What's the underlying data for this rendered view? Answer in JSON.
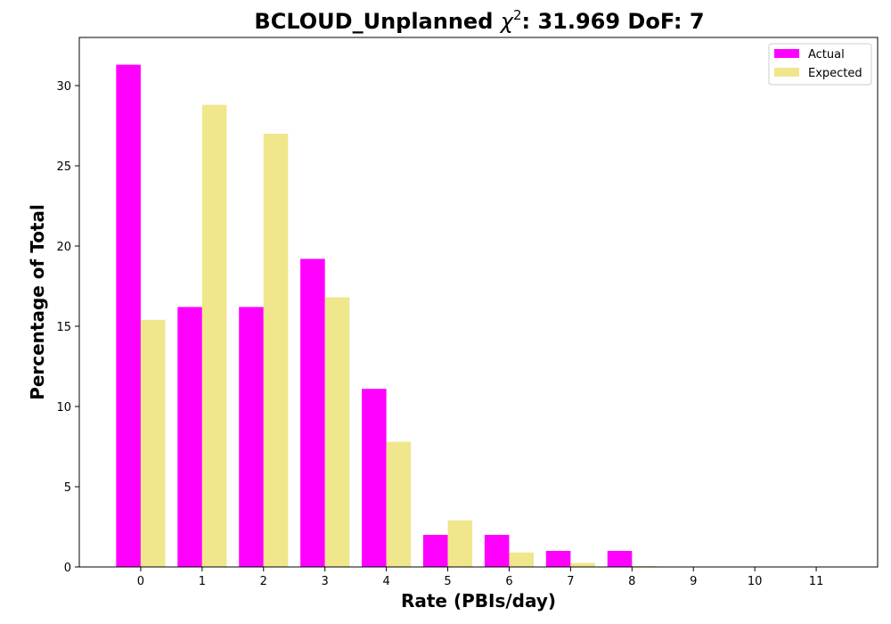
{
  "chart_data": {
    "type": "bar",
    "title": "BCLOUD_Unplanned",
    "title_chi_symbol": "χ",
    "title_chi_power": "2",
    "title_suffix": ": 31.969 DoF: 7",
    "xlabel": "Rate (PBIs/day)",
    "ylabel": "Percentage of Total",
    "categories": [
      "0",
      "1",
      "2",
      "3",
      "4",
      "5",
      "6",
      "7",
      "8",
      "9",
      "10",
      "11"
    ],
    "x": [
      0,
      1,
      2,
      3,
      4,
      5,
      6,
      7,
      8,
      9,
      10,
      11
    ],
    "xlim": [
      -1,
      12
    ],
    "ylim": [
      0,
      33
    ],
    "yticks": [
      0,
      5,
      10,
      15,
      20,
      25,
      30
    ],
    "series": [
      {
        "name": "Actual",
        "color": "#ff00ff",
        "values": [
          31.3,
          16.2,
          16.2,
          19.2,
          11.1,
          2.0,
          2.0,
          1.0,
          1.0,
          0,
          0,
          0
        ]
      },
      {
        "name": "Expected",
        "color": "#f0e68c",
        "values": [
          15.4,
          28.8,
          27.0,
          16.8,
          7.8,
          2.9,
          0.9,
          0.25,
          0.06,
          0.01,
          0.0,
          0.0
        ]
      }
    ],
    "grid": false,
    "legend_position": "top-right"
  }
}
